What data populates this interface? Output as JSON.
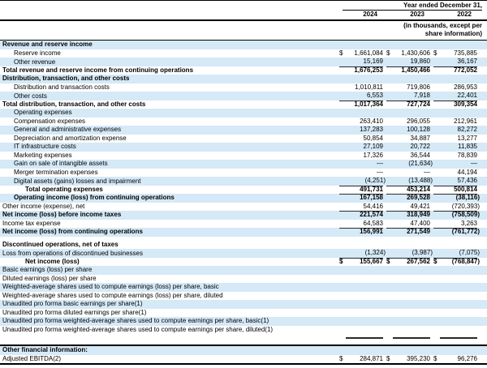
{
  "colors": {
    "row_highlight": "#d5e9f7",
    "rule_color": "#000000",
    "cell_rule_color": "#2b2b2b"
  },
  "header": {
    "period_label": "Year ended December 31,",
    "years": [
      "2024",
      "2023",
      "2022"
    ],
    "units_note_line1": "(in thousands, except per",
    "units_note_line2": "share information)"
  },
  "table": {
    "currency": "$",
    "rows": [
      {
        "label": "Revenue and reserve income",
        "bold": true,
        "shaded": true,
        "indent": 0,
        "values": [
          "",
          "",
          ""
        ]
      },
      {
        "label": "Reserve income",
        "indent": 1,
        "dollar": true,
        "values": [
          "1,661,084",
          "1,430,606",
          "735,885"
        ]
      },
      {
        "label": "Other revenue",
        "indent": 1,
        "shaded": true,
        "underline": true,
        "values": [
          "15,169",
          "19,860",
          "36,167"
        ]
      },
      {
        "label": "Total revenue and reserve income from continuing operations",
        "bold": true,
        "indent": 0,
        "values": [
          "1,676,253",
          "1,450,466",
          "772,052"
        ]
      },
      {
        "label": "Distribution, transaction, and other costs",
        "bold": true,
        "shaded": true,
        "indent": 0,
        "values": [
          "",
          "",
          ""
        ]
      },
      {
        "label": "Distribution and transaction costs",
        "indent": 1,
        "values": [
          "1,010,811",
          "719,806",
          "286,953"
        ]
      },
      {
        "label": "Other costs",
        "indent": 1,
        "shaded": true,
        "underline": true,
        "values": [
          "6,553",
          "7,918",
          "22,401"
        ]
      },
      {
        "label": "Total distribution, transaction, and other costs",
        "bold": true,
        "indent": 0,
        "values": [
          "1,017,364",
          "727,724",
          "309,354"
        ]
      },
      {
        "label": "Operating expenses",
        "indent": 1,
        "shaded": true,
        "values": [
          "",
          "",
          ""
        ]
      },
      {
        "label": "Compensation expenses",
        "indent": 1,
        "values": [
          "263,410",
          "296,055",
          "212,961"
        ]
      },
      {
        "label": "General and administrative expenses",
        "indent": 1,
        "shaded": true,
        "values": [
          "137,283",
          "100,128",
          "82,272"
        ]
      },
      {
        "label": "Depreciation and amortization expense",
        "indent": 1,
        "values": [
          "50,854",
          "34,887",
          "13,277"
        ]
      },
      {
        "label": "IT infrastructure costs",
        "indent": 1,
        "shaded": true,
        "values": [
          "27,109",
          "20,722",
          "11,835"
        ]
      },
      {
        "label": "Marketing expenses",
        "indent": 1,
        "values": [
          "17,326",
          "36,544",
          "78,839"
        ]
      },
      {
        "label": "Gain on sale of intangible assets",
        "indent": 1,
        "shaded": true,
        "values": [
          "—",
          "(21,634)",
          "—"
        ]
      },
      {
        "label": "Merger termination expenses",
        "indent": 1,
        "values": [
          "—",
          "—",
          "44,194"
        ]
      },
      {
        "label": "Digital assets (gains) losses and impairment",
        "indent": 1,
        "shaded": true,
        "underline": true,
        "values": [
          "(4,251)",
          "(13,488)",
          "57,436"
        ]
      },
      {
        "label": "Total operating expenses",
        "bold": true,
        "indent": 2,
        "underline": true,
        "values": [
          "491,731",
          "453,214",
          "500,814"
        ]
      },
      {
        "label": "Operating income (loss) from continuing operations",
        "bold": true,
        "shaded": true,
        "indent": 1,
        "values": [
          "167,158",
          "269,528",
          "(38,116)"
        ]
      },
      {
        "label": "Other income (expense), net",
        "indent": 0,
        "underline": true,
        "values": [
          "54,416",
          "49,421",
          "(720,393)"
        ]
      },
      {
        "label": "Net income (loss) before income taxes",
        "bold": true,
        "shaded": true,
        "indent": 0,
        "values": [
          "221,574",
          "318,949",
          "(758,509)"
        ]
      },
      {
        "label": "Income tax expense",
        "indent": 0,
        "underline": true,
        "values": [
          "64,583",
          "47,400",
          "3,263"
        ]
      },
      {
        "label": "Net income (loss) from continuing operations",
        "bold": true,
        "shaded": true,
        "indent": 0,
        "values": [
          "156,991",
          "271,549",
          "(761,772)"
        ]
      },
      {
        "type": "spacer"
      },
      {
        "label": "Discontinued operations, net of taxes",
        "bold": true,
        "indent": 0,
        "values": [
          "",
          "",
          ""
        ]
      },
      {
        "label": "Loss from operations of discontinued businesses",
        "shaded": true,
        "indent": 0,
        "underline": true,
        "values": [
          "(1,324)",
          "(3,987)",
          "(7,075)"
        ]
      },
      {
        "label": "Net income (loss)",
        "bold": true,
        "indent": 2,
        "dollar": true,
        "values": [
          "155,667",
          "267,562",
          "(768,847)"
        ]
      },
      {
        "label": "Basic earnings (loss) per share",
        "shaded": true,
        "indent": 0,
        "values": [
          "",
          "",
          ""
        ]
      },
      {
        "label": "Diluted earnings (loss) per share",
        "indent": 0,
        "values": [
          "",
          "",
          ""
        ]
      },
      {
        "label": "Weighted-average shares used to compute earnings (loss) per share, basic",
        "shaded": true,
        "indent": 0,
        "values": [
          "",
          "",
          ""
        ]
      },
      {
        "label": "Weighted-average shares used to compute earnings (loss) per share, diluted",
        "indent": 0,
        "values": [
          "",
          "",
          ""
        ]
      },
      {
        "label": "Unaudited pro forma basic earnings per share(1)",
        "shaded": true,
        "indent": 0,
        "values": [
          "",
          "",
          ""
        ]
      },
      {
        "label": "Unaudited pro forma diluted earnings per share(1)",
        "indent": 0,
        "values": [
          "",
          "",
          ""
        ]
      },
      {
        "label": "Unaudited pro forma weighted-average shares used to compute earnings per share, basic(1)",
        "shaded": true,
        "indent": 0,
        "values": [
          "",
          "",
          ""
        ]
      },
      {
        "label": "Unaudited pro forma weighted-average shares used to compute earnings per share, diluted(1)",
        "indent": 0,
        "values": [
          "",
          "",
          ""
        ]
      },
      {
        "type": "segments"
      },
      {
        "type": "rule",
        "thick": true,
        "gap": true
      },
      {
        "label": "Other financial information:",
        "bold": true,
        "shaded": true,
        "indent": 0,
        "values": [
          "",
          "",
          ""
        ]
      },
      {
        "label": "Adjusted EBITDA(2)",
        "indent": 0,
        "dollar": true,
        "values": [
          "284,871",
          "395,230",
          "96,276"
        ]
      },
      {
        "type": "rule",
        "thick": true
      }
    ]
  }
}
